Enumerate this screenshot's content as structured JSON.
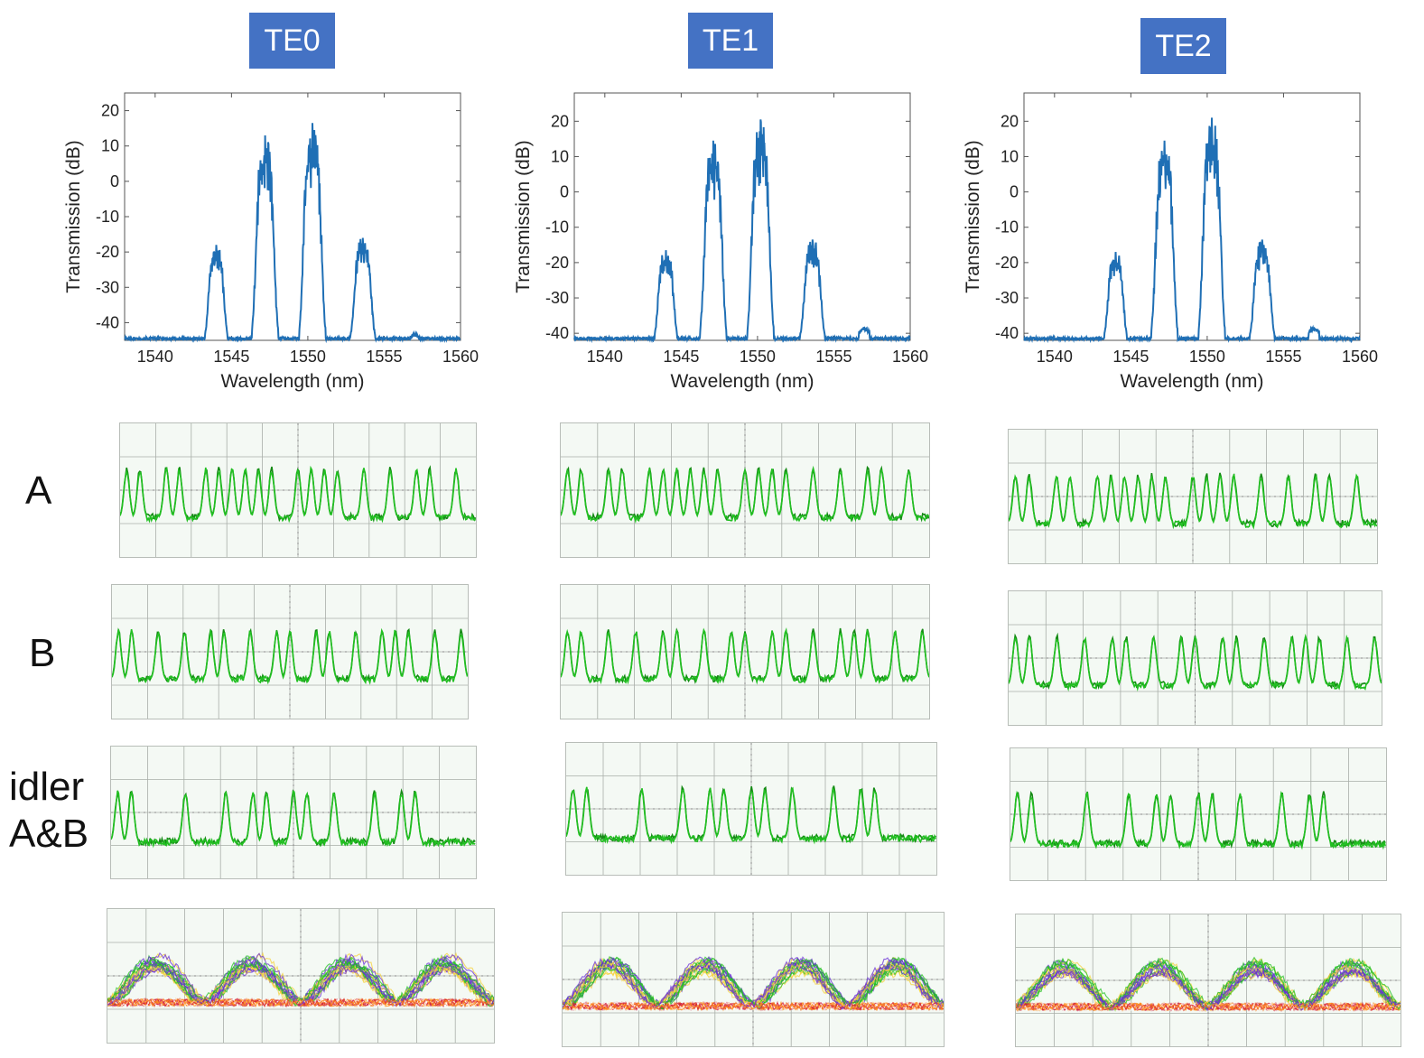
{
  "colors": {
    "badge": "#4472c4",
    "spectrum_line": "#1f6fb5",
    "scope_trace": "#22c022",
    "scope_grid": "#a9aea9",
    "eye_colors": [
      "#22c022",
      "#d21f3c",
      "#6a2fd6",
      "#ff8c1a",
      "#f6d23c",
      "#ffffff"
    ]
  },
  "modes": [
    "TE0",
    "TE1",
    "TE2"
  ],
  "row_labels": {
    "a": "A",
    "b": "B",
    "idler_line1": "idler",
    "idler_line2": "A&B"
  },
  "chart_data": [
    {
      "type": "line",
      "name": "TE0 transmission spectrum",
      "xlabel": "Wavelength (nm)",
      "ylabel": "Transmission (dB)",
      "xlim": [
        1538,
        1560
      ],
      "ylim": [
        -45,
        25
      ],
      "xticks": [
        1540,
        1545,
        1550,
        1555,
        1560
      ],
      "yticks": [
        20,
        10,
        0,
        -10,
        -20,
        -30,
        -40
      ],
      "xtick_labels": [
        "1540",
        "1545",
        "1550",
        "1555",
        "1560"
      ],
      "ytick_labels": [
        "20",
        "10",
        "0",
        "-10",
        "-20",
        "-30",
        "-40"
      ],
      "noise_floor": -44.5,
      "peaks": [
        {
          "center": 1544.0,
          "peak": -18,
          "width": 1.3
        },
        {
          "center": 1547.2,
          "peak": 13,
          "width": 1.5
        },
        {
          "center": 1550.3,
          "peak": 16.5,
          "width": 1.5
        },
        {
          "center": 1553.6,
          "peak": -16,
          "width": 1.4
        }
      ],
      "small_bumps": [
        {
          "center": 1557.0,
          "peak": -43
        }
      ]
    },
    {
      "type": "line",
      "name": "TE1 transmission spectrum",
      "xlabel": "Wavelength (nm)",
      "ylabel": "Transmission (dB)",
      "xlim": [
        1538,
        1560
      ],
      "ylim": [
        -42,
        28
      ],
      "xticks": [
        1540,
        1545,
        1550,
        1555,
        1560
      ],
      "yticks": [
        20,
        10,
        0,
        -10,
        -20,
        -30,
        -40
      ],
      "xtick_labels": [
        "1540",
        "1545",
        "1550",
        "1555",
        "1560"
      ],
      "ytick_labels": [
        "20",
        "10",
        "0",
        "-10",
        "-20",
        "-30",
        "-40"
      ],
      "noise_floor": -41.5,
      "peaks": [
        {
          "center": 1544.0,
          "peak": -16.5,
          "width": 1.3
        },
        {
          "center": 1547.1,
          "peak": 14.5,
          "width": 1.5
        },
        {
          "center": 1550.2,
          "peak": 20.5,
          "width": 1.5
        },
        {
          "center": 1553.6,
          "peak": -13.5,
          "width": 1.4
        }
      ],
      "small_bumps": [
        {
          "center": 1557.0,
          "peak": -38.5
        }
      ]
    },
    {
      "type": "line",
      "name": "TE2 transmission spectrum",
      "xlabel": "Wavelength (nm)",
      "ylabel": "Transmission (dB)",
      "xlim": [
        1538,
        1560
      ],
      "ylim": [
        -42,
        28
      ],
      "xticks": [
        1540,
        1545,
        1550,
        1555,
        1560
      ],
      "yticks": [
        20,
        10,
        0,
        -10,
        -20,
        -30,
        -40
      ],
      "xtick_labels": [
        "1540",
        "1545",
        "1550",
        "1555",
        "1560"
      ],
      "ytick_labels": [
        "20",
        "10",
        "0",
        "-10",
        "-20",
        "-30",
        "-40"
      ],
      "noise_floor": -41.5,
      "peaks": [
        {
          "center": 1544.0,
          "peak": -17,
          "width": 1.3
        },
        {
          "center": 1547.2,
          "peak": 14.5,
          "width": 1.5
        },
        {
          "center": 1550.3,
          "peak": 21,
          "width": 1.5
        },
        {
          "center": 1553.6,
          "peak": -13.5,
          "width": 1.4
        }
      ],
      "small_bumps": [
        {
          "center": 1557.0,
          "peak": -38.5
        }
      ]
    }
  ],
  "scope_traces": {
    "A": [
      1,
      1,
      0,
      1,
      1,
      0,
      1,
      1,
      1,
      1,
      1,
      1,
      0,
      1,
      1,
      1,
      1,
      0,
      1,
      0,
      1,
      0,
      1,
      1,
      0,
      1,
      0
    ],
    "B": [
      1,
      1,
      0,
      1,
      0,
      1,
      0,
      1,
      1,
      0,
      1,
      0,
      1,
      1,
      0,
      1,
      1,
      0,
      1,
      0,
      1,
      1,
      1,
      0,
      1,
      0,
      1
    ],
    "idler": [
      1,
      1,
      0,
      0,
      0,
      1,
      0,
      0,
      1,
      0,
      1,
      1,
      0,
      1,
      1,
      0,
      1,
      0,
      0,
      1,
      0,
      1,
      1,
      0,
      0,
      0,
      0
    ]
  }
}
